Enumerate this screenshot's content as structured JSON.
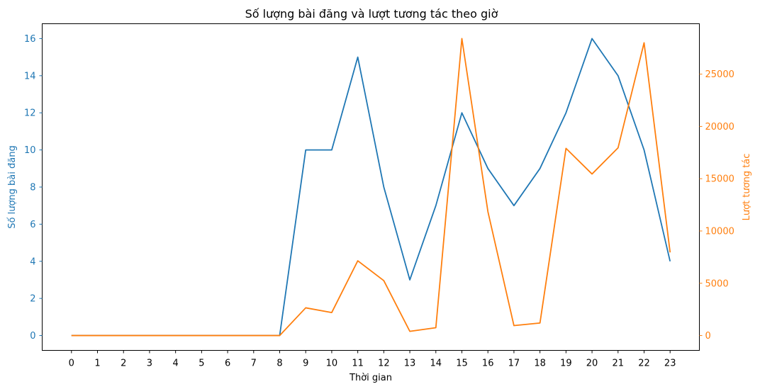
{
  "chart_data": {
    "type": "line",
    "title": "Số lượng bài đăng và lượt tương tác theo giờ",
    "xlabel": "Thời gian",
    "x": [
      0,
      1,
      2,
      3,
      4,
      5,
      6,
      7,
      8,
      9,
      10,
      11,
      12,
      13,
      14,
      15,
      16,
      17,
      18,
      19,
      20,
      21,
      22,
      23
    ],
    "y_left": {
      "label": "Số lượng bài đăng",
      "color": "#1f77b4",
      "ylim": [
        -0.8,
        16.8
      ],
      "ticks": [
        0,
        2,
        4,
        6,
        8,
        10,
        12,
        14,
        16
      ],
      "values": [
        0,
        0,
        0,
        0,
        0,
        0,
        0,
        0,
        0,
        10,
        10,
        15,
        8,
        3,
        7,
        12,
        9,
        7,
        9,
        12,
        16,
        14,
        10,
        4
      ]
    },
    "y_right": {
      "label": "Lượt tương tác",
      "color": "#ff7f0e",
      "ylim": [
        -1420,
        29820
      ],
      "ticks": [
        0,
        5000,
        10000,
        15000,
        20000,
        25000
      ],
      "values": [
        0,
        0,
        0,
        0,
        0,
        0,
        0,
        0,
        0,
        2650,
        2200,
        7150,
        5250,
        400,
        750,
        28400,
        11850,
        950,
        1200,
        17900,
        15450,
        17950,
        28000,
        7950
      ]
    },
    "grid": false,
    "legend": "none"
  }
}
